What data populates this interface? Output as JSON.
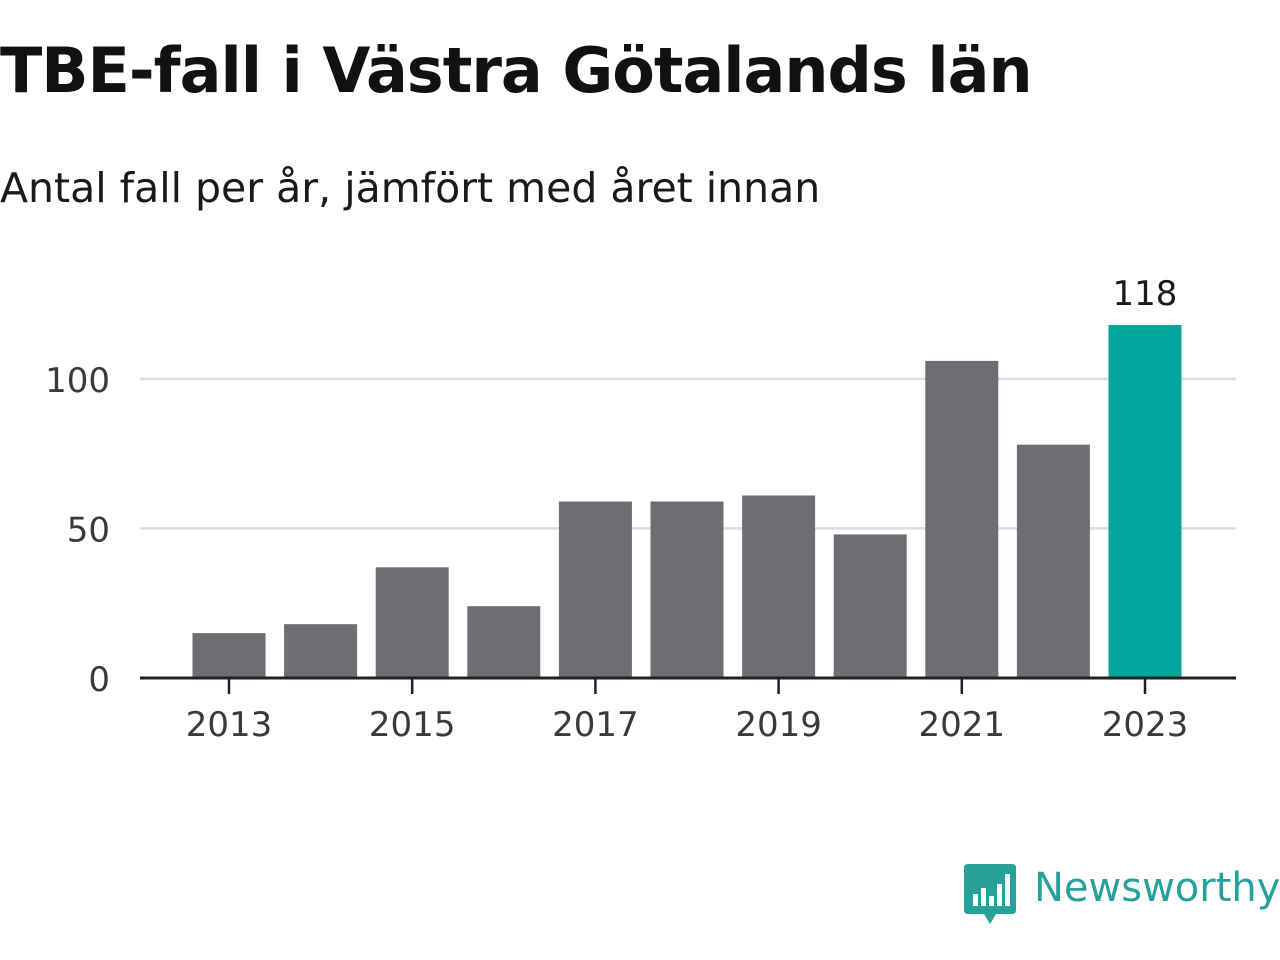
{
  "title": "TBE-fall i Västra Götalands län",
  "subtitle": "Antal fall per år, jämfört med året innan",
  "brand": {
    "name": "Newsworthy",
    "icon": "newsworthy-logo-icon",
    "color": "#27a29a"
  },
  "colors": {
    "bar": "#6e6d74",
    "highlight": "#00a59c",
    "grid": "#dedede",
    "axis": "#222222",
    "tick_text": "#3a3a3a"
  },
  "chart_data": {
    "type": "bar",
    "x": [
      2013,
      2014,
      2015,
      2016,
      2017,
      2018,
      2019,
      2020,
      2021,
      2022,
      2023
    ],
    "values": [
      15,
      18,
      37,
      24,
      59,
      59,
      61,
      48,
      106,
      78,
      118
    ],
    "x_tick_labels": [
      "2013",
      "2015",
      "2017",
      "2019",
      "2021",
      "2023"
    ],
    "y_ticks": [
      0,
      50,
      100
    ],
    "ylim": [
      0,
      118
    ],
    "highlight_index": 10,
    "data_labels": [
      {
        "index": 10,
        "text": "118"
      }
    ],
    "grid": "horizontal",
    "legend": "none",
    "xlabel": "",
    "ylabel": ""
  }
}
